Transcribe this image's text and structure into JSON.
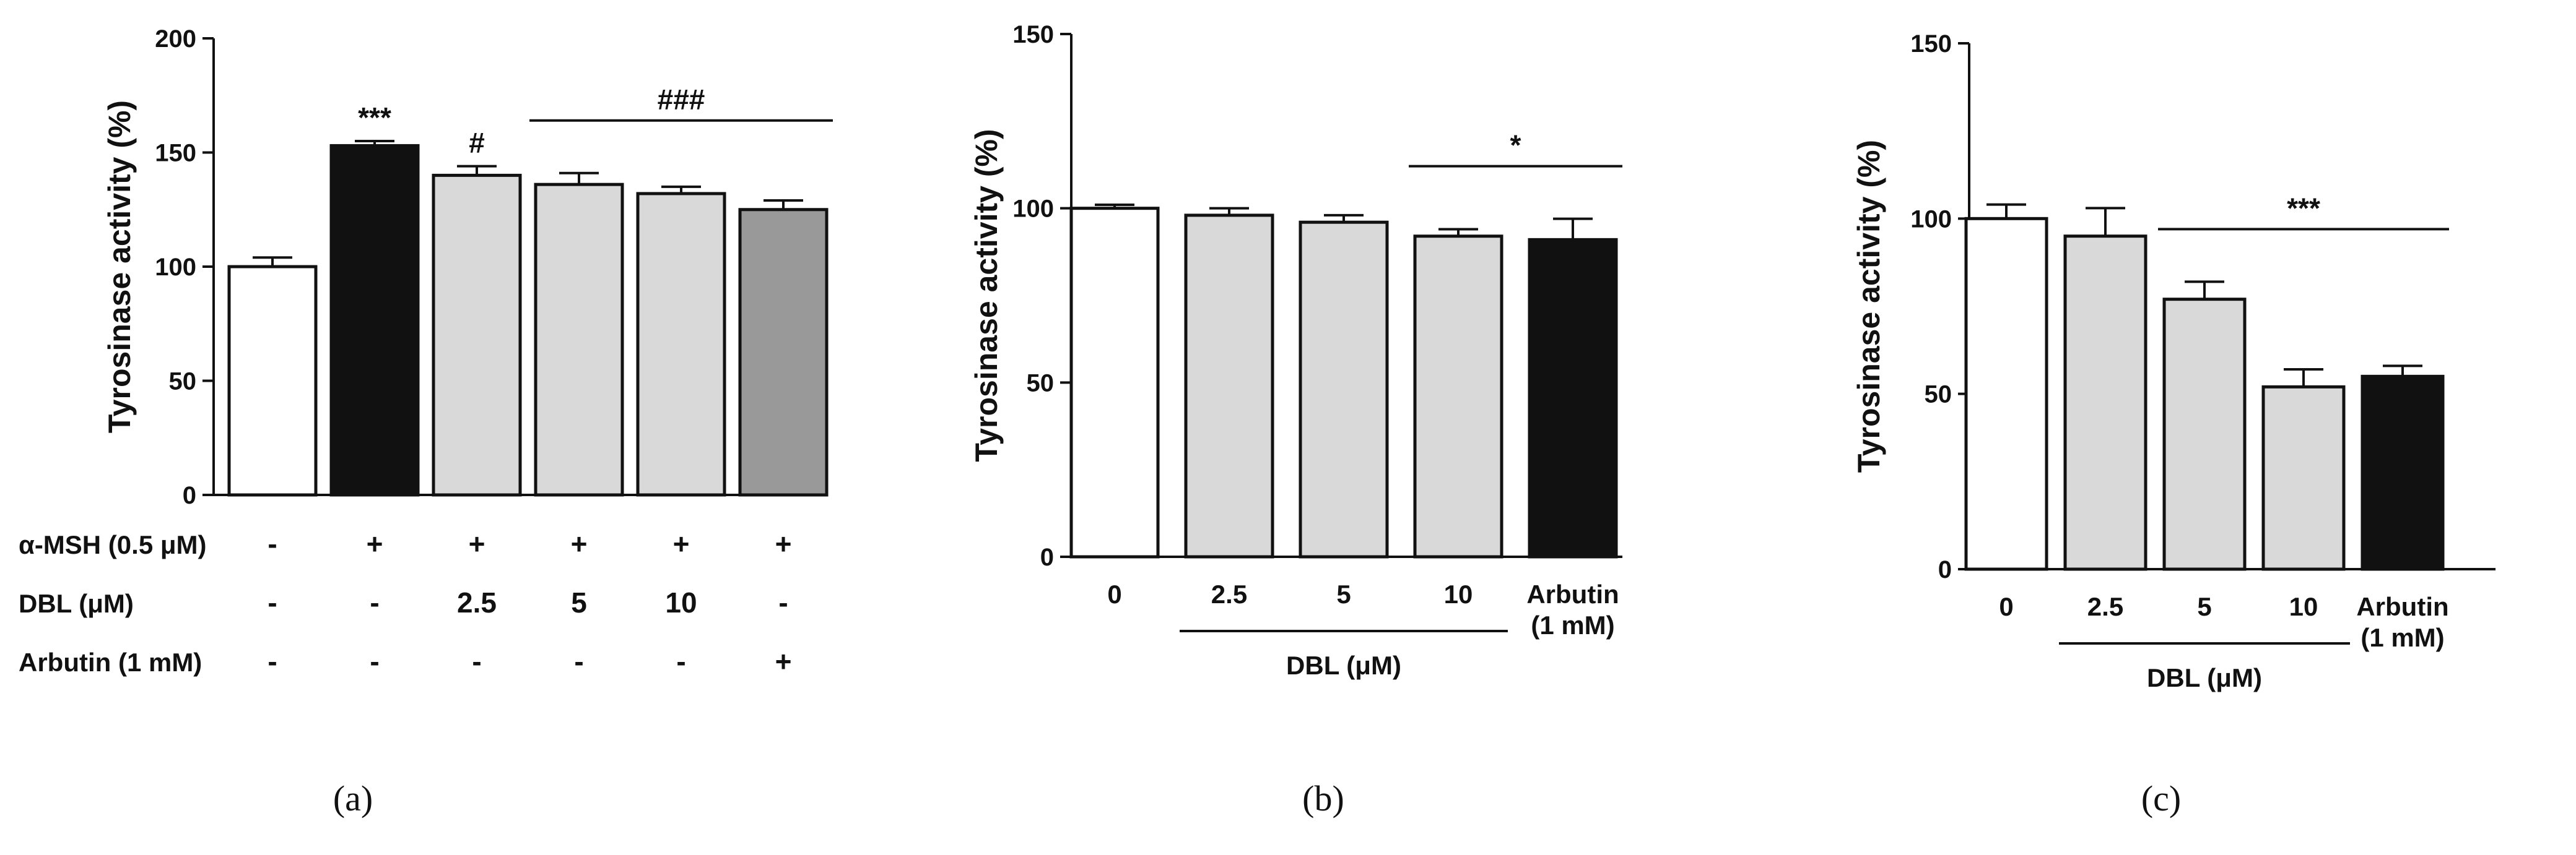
{
  "chart_data": [
    {
      "type": "bar",
      "caption": "(a)",
      "ylabel": "Tyrosinase activity (%)",
      "ylim": [
        0,
        200
      ],
      "yticks": [
        "0",
        "50",
        "100",
        "150",
        "200"
      ],
      "bars": [
        {
          "value": 100,
          "error": 4,
          "fill": "#ffffff",
          "annotation": ""
        },
        {
          "value": 153,
          "error": 2,
          "fill": "#111111",
          "annotation": "***"
        },
        {
          "value": 140,
          "error": 4,
          "fill": "#d9d9d9",
          "annotation": "#"
        },
        {
          "value": 136,
          "error": 5,
          "fill": "#d9d9d9",
          "annotation": ""
        },
        {
          "value": 132,
          "error": 3,
          "fill": "#d9d9d9",
          "annotation": ""
        },
        {
          "value": 125,
          "error": 4,
          "fill": "#999999",
          "annotation": ""
        }
      ],
      "bracket": {
        "from": 3,
        "to": 5,
        "label": "###"
      },
      "treatment_table": [
        {
          "label": "α-MSH (0.5 μM)",
          "values": [
            "-",
            "+",
            "+",
            "+",
            "+",
            "+"
          ]
        },
        {
          "label": "DBL (μM)",
          "values": [
            "-",
            "-",
            "2.5",
            "5",
            "10",
            "-"
          ]
        },
        {
          "label": "Arbutin (1 mM)",
          "values": [
            "-",
            "-",
            "-",
            "-",
            "-",
            "+"
          ]
        }
      ]
    },
    {
      "type": "bar",
      "caption": "(b)",
      "ylabel": "Tyrosinase activity (%)",
      "ylim": [
        0,
        150
      ],
      "yticks": [
        "0",
        "50",
        "100",
        "150"
      ],
      "categories": [
        "0",
        "2.5",
        "5",
        "10",
        "Arbutin\n(1 mM)"
      ],
      "bars": [
        {
          "value": 100,
          "error": 1,
          "fill": "#ffffff"
        },
        {
          "value": 98,
          "error": 2,
          "fill": "#d9d9d9"
        },
        {
          "value": 96,
          "error": 2,
          "fill": "#d9d9d9"
        },
        {
          "value": 92,
          "error": 2,
          "fill": "#d9d9d9"
        },
        {
          "value": 91,
          "error": 6,
          "fill": "#111111"
        }
      ],
      "bracket": {
        "from": 3,
        "to": 4,
        "label": "*"
      },
      "group_label": {
        "from": 1,
        "to": 3,
        "label": "DBL (μM)"
      }
    },
    {
      "type": "bar",
      "caption": "(c)",
      "ylabel": "Tyrosinase activity (%)",
      "ylim": [
        0,
        150
      ],
      "yticks": [
        "0",
        "50",
        "100",
        "150"
      ],
      "categories": [
        "0",
        "2.5",
        "5",
        "10",
        "Arbutin\n(1 mM)"
      ],
      "bars": [
        {
          "value": 100,
          "error": 4,
          "fill": "#ffffff"
        },
        {
          "value": 95,
          "error": 8,
          "fill": "#d9d9d9"
        },
        {
          "value": 77,
          "error": 5,
          "fill": "#d9d9d9"
        },
        {
          "value": 52,
          "error": 5,
          "fill": "#d9d9d9"
        },
        {
          "value": 55,
          "error": 3,
          "fill": "#111111"
        }
      ],
      "bracket": {
        "from": 2,
        "to": 4,
        "label": "***"
      },
      "group_label": {
        "from": 1,
        "to": 3,
        "label": "DBL (μM)"
      }
    }
  ]
}
